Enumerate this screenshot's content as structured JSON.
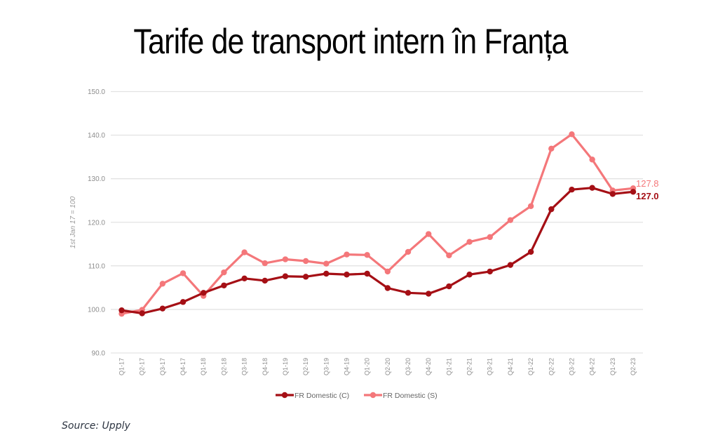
{
  "title": "Tarife de transport intern în Franța",
  "source": "Source: Upply",
  "chart_data": {
    "type": "line",
    "title": "Tarife de transport intern în Franța",
    "xlabel": "",
    "ylabel": "1st Jan 17 = 100",
    "ylim": [
      90,
      150
    ],
    "yticks": [
      "90.0",
      "100.0",
      "110.0",
      "120.0",
      "130.0",
      "140.0",
      "150.0"
    ],
    "grid": true,
    "legend_position": "bottom",
    "categories": [
      "Q1-17",
      "Q2-17",
      "Q3-17",
      "Q4-17",
      "Q1-18",
      "Q2-18",
      "Q3-18",
      "Q4-18",
      "Q1-19",
      "Q2-19",
      "Q3-19",
      "Q4-19",
      "Q1-20",
      "Q2-20",
      "Q3-20",
      "Q4-20",
      "Q1-21",
      "Q2-21",
      "Q3-21",
      "Q4-21",
      "Q1-22",
      "Q2-22",
      "Q3-22",
      "Q4-22",
      "Q1-23",
      "Q2-23"
    ],
    "series": [
      {
        "name": "FR Domestic (C)",
        "color": "#a50f15",
        "values": [
          99.8,
          99.1,
          100.2,
          101.7,
          103.8,
          105.5,
          107.1,
          106.6,
          107.6,
          107.5,
          108.2,
          108.0,
          108.2,
          104.9,
          103.8,
          103.6,
          105.3,
          108.0,
          108.7,
          110.2,
          113.2,
          123.0,
          127.5,
          127.9,
          126.5,
          127.0
        ],
        "end_label": "127.0"
      },
      {
        "name": "FR Domestic (S)",
        "color": "#f4777a",
        "values": [
          99.0,
          99.9,
          105.9,
          108.3,
          103.1,
          108.5,
          113.1,
          110.6,
          111.5,
          111.1,
          110.5,
          112.6,
          112.5,
          108.7,
          113.2,
          117.3,
          112.4,
          115.5,
          116.6,
          120.5,
          123.7,
          136.9,
          140.2,
          134.4,
          127.3,
          127.8
        ],
        "end_label": "127.8"
      }
    ]
  }
}
